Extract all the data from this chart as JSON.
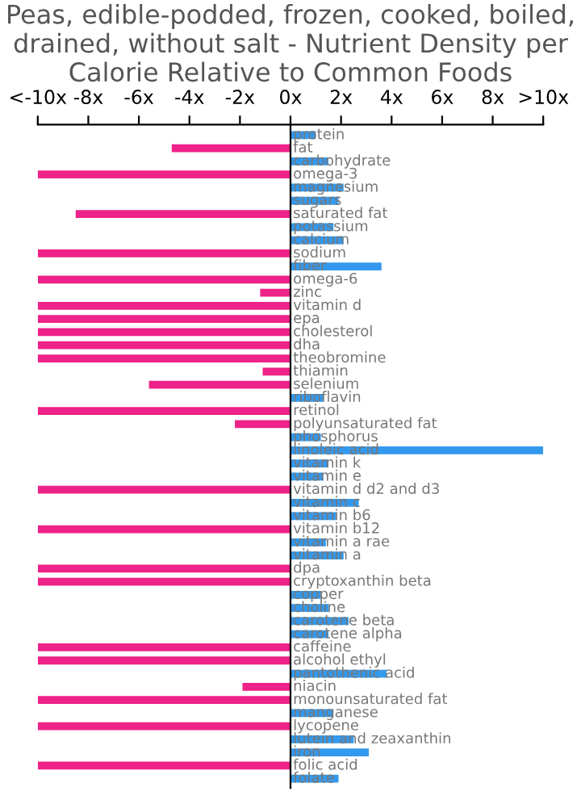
{
  "chart_data": {
    "type": "bar",
    "orientation": "horizontal",
    "title": "Peas, edible-podded, frozen, cooked, boiled, drained, without salt - Nutrient Density per Calorie Relative to Common Foods",
    "categories": [
      "protein",
      "fat",
      "carbohydrate",
      "omega-3",
      "magnesium",
      "sugars",
      "saturated fat",
      "potassium",
      "calcium",
      "sodium",
      "fiber",
      "omega-6",
      "zinc",
      "vitamin d",
      "epa",
      "cholesterol",
      "dha",
      "theobromine",
      "thiamin",
      "selenium",
      "riboflavin",
      "retinol",
      "polyunsaturated fat",
      "phosphorus",
      "linoleic acid",
      "vitamin k",
      "vitamin e",
      "vitamin d d2 and d3",
      "vitamin c",
      "vitamin b6",
      "vitamin b12",
      "vitamin a rae",
      "vitamin a",
      "dpa",
      "cryptoxanthin beta",
      "copper",
      "choline",
      "carotene beta",
      "carotene alpha",
      "caffeine",
      "alcohol ethyl",
      "pantothenic acid",
      "niacin",
      "monounsaturated fat",
      "manganese",
      "lycopene",
      "lutein and zeaxanthin",
      "iron",
      "folic acid",
      "folate"
    ],
    "values": [
      1.0,
      -4.7,
      1.5,
      -10,
      2.1,
      1.9,
      -8.5,
      1.7,
      2.1,
      -10,
      3.6,
      -10,
      -1.2,
      -10,
      -10,
      -10,
      -10,
      -10,
      -1.1,
      -5.6,
      1.3,
      -10,
      -2.2,
      1.2,
      10,
      1.5,
      1.3,
      -10,
      2.7,
      1.8,
      -10,
      1.4,
      2.1,
      -10,
      -10,
      1.2,
      1.5,
      2.3,
      1.5,
      -10,
      -10,
      3.8,
      -1.9,
      -10,
      1.7,
      -10,
      2.5,
      3.1,
      -10,
      1.9
    ],
    "colors": [
      "#3399ee",
      "#ee2288",
      "#3399ee",
      "#ee2288",
      "#3399ee",
      "#3399ee",
      "#ee2288",
      "#3399ee",
      "#3399ee",
      "#ee2288",
      "#3399ee",
      "#ee2288",
      "#ee2288",
      "#ee2288",
      "#ee2288",
      "#ee2288",
      "#ee2288",
      "#ee2288",
      "#ee2288",
      "#ee2288",
      "#3399ee",
      "#ee2288",
      "#ee2288",
      "#3399ee",
      "#3399ee",
      "#3399ee",
      "#3399ee",
      "#ee2288",
      "#3399ee",
      "#3399ee",
      "#ee2288",
      "#3399ee",
      "#3399ee",
      "#ee2288",
      "#ee2288",
      "#3399ee",
      "#3399ee",
      "#3399ee",
      "#3399ee",
      "#ee2288",
      "#ee2288",
      "#3399ee",
      "#ee2288",
      "#ee2288",
      "#3399ee",
      "#ee2288",
      "#3399ee",
      "#3399ee",
      "#ee2288",
      "#3399ee"
    ],
    "xlim": [
      -10,
      10
    ],
    "xticks": [
      {
        "value": -10,
        "label": "<-10x"
      },
      {
        "value": -8,
        "label": "-8x"
      },
      {
        "value": -6,
        "label": "-6x"
      },
      {
        "value": -4,
        "label": "-4x"
      },
      {
        "value": -2,
        "label": "-2x"
      },
      {
        "value": 0,
        "label": "0x"
      },
      {
        "value": 2,
        "label": "2x"
      },
      {
        "value": 4,
        "label": "4x"
      },
      {
        "value": 6,
        "label": "6x"
      },
      {
        "value": 8,
        "label": "8x"
      },
      {
        "value": 10,
        "label": ">10x"
      }
    ],
    "grid": false
  }
}
